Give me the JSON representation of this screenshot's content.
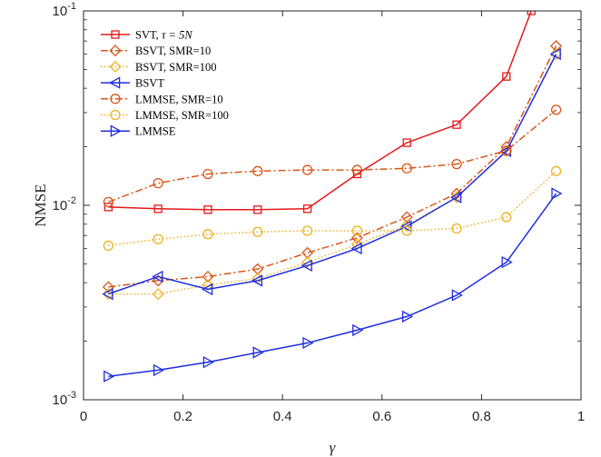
{
  "chart_data": {
    "type": "line",
    "xlabel": "γ",
    "ylabel": "NMSE",
    "xlim": [
      0,
      1
    ],
    "ylim": [
      0.001,
      0.1
    ],
    "yscale": "log",
    "xticks": [
      "0",
      "0.2",
      "0.4",
      "0.6",
      "0.8",
      "1"
    ],
    "yticks": [
      {
        "base": "10",
        "exp": "-3"
      },
      {
        "base": "10",
        "exp": "-2"
      },
      {
        "base": "10",
        "exp": "-1"
      }
    ],
    "grid": false,
    "legend_position": "top-left",
    "x": [
      0.05,
      0.15,
      0.25,
      0.35,
      0.45,
      0.55,
      0.65,
      0.75,
      0.85,
      0.95
    ],
    "series": [
      {
        "name_main": "SVT, ",
        "name_math": "τ = 5N",
        "name_plain": "SVT, τ = 5N",
        "color": "#e3191b",
        "dash": "solid",
        "marker": "square",
        "x": [
          0.05,
          0.15,
          0.25,
          0.35,
          0.45,
          0.55,
          0.65,
          0.75,
          0.85,
          0.9
        ],
        "values": [
          0.0098,
          0.0096,
          0.0095,
          0.0095,
          0.0096,
          0.0145,
          0.021,
          0.026,
          0.046,
          0.1
        ]
      },
      {
        "name_plain": "BSVT, SMR=10",
        "color": "#d9561b",
        "dash": "dashdot",
        "marker": "diamond",
        "values": [
          0.0038,
          0.0041,
          0.0043,
          0.0047,
          0.0057,
          0.0068,
          0.0087,
          0.0115,
          0.02,
          0.066
        ]
      },
      {
        "name_plain": "BSVT, SMR=100",
        "color": "#edb120",
        "dash": "dotted",
        "marker": "diamond",
        "values": [
          0.0035,
          0.0035,
          0.0039,
          0.0042,
          0.0051,
          0.0063,
          0.0079,
          0.011,
          0.019,
          0.06
        ]
      },
      {
        "name_plain": "BSVT",
        "color": "#1f2ee0",
        "dash": "solid",
        "marker": "triangle-left",
        "values": [
          0.0035,
          0.0043,
          0.0037,
          0.0041,
          0.0049,
          0.006,
          0.0078,
          0.011,
          0.019,
          0.06
        ]
      },
      {
        "name_plain": "LMMSE, SMR=10",
        "color": "#d9561b",
        "dash": "dashdot",
        "marker": "circle",
        "values": [
          0.0104,
          0.013,
          0.0145,
          0.015,
          0.0152,
          0.0152,
          0.0155,
          0.0163,
          0.0191,
          0.031
        ]
      },
      {
        "name_plain": "LMMSE, SMR=100",
        "color": "#edb120",
        "dash": "dotted",
        "marker": "circle",
        "values": [
          0.0062,
          0.0067,
          0.0071,
          0.0073,
          0.0074,
          0.0074,
          0.0074,
          0.0076,
          0.0087,
          0.015
        ]
      },
      {
        "name_plain": "LMMSE",
        "color": "#1f2ee0",
        "dash": "solid",
        "marker": "triangle-right",
        "values": [
          0.00132,
          0.00142,
          0.00156,
          0.00175,
          0.00196,
          0.00228,
          0.00268,
          0.00345,
          0.0051,
          0.0115
        ]
      }
    ]
  }
}
